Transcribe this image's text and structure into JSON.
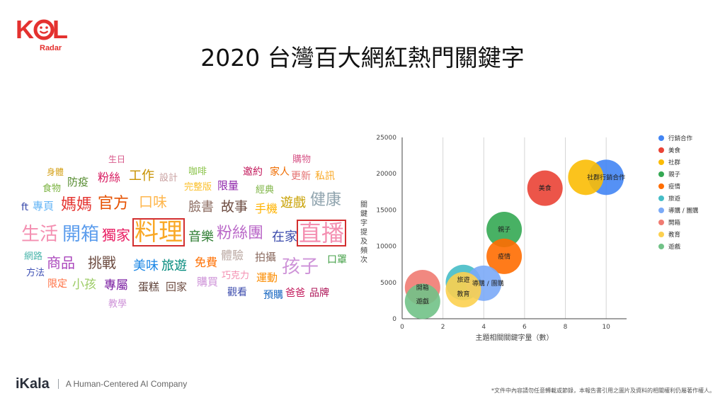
{
  "logo": {
    "main": "KOL",
    "sub": "Radar",
    "main_color": "#e4312f",
    "sub_color": "#e4312f",
    "icon": "smile-face-icon"
  },
  "title": "2020 台灣百大網紅熱門關鍵字",
  "word_cloud": {
    "words": [
      {
        "text": "生日",
        "color": "#d85a8b",
        "size": 12
      },
      {
        "text": "購物",
        "color": "#d85a8b",
        "size": 13
      },
      {
        "text": "身體",
        "color": "#d4a017",
        "size": 12
      },
      {
        "text": "粉絲",
        "color": "#d81b60",
        "size": 16
      },
      {
        "text": "工作",
        "color": "#c79100",
        "size": 18
      },
      {
        "text": "設計",
        "color": "#c9a0a0",
        "size": 13
      },
      {
        "text": "咖啡",
        "color": "#8bc34a",
        "size": 13
      },
      {
        "text": "邀約",
        "color": "#c2185b",
        "size": 14
      },
      {
        "text": "家人",
        "color": "#ef6c00",
        "size": 14
      },
      {
        "text": "食物",
        "color": "#7cb342",
        "size": 13
      },
      {
        "text": "防疫",
        "color": "#558b2f",
        "size": 15
      },
      {
        "text": "完整版",
        "color": "#fbc02d",
        "size": 13
      },
      {
        "text": "限量",
        "color": "#8e24aa",
        "size": 15
      },
      {
        "text": "經典",
        "color": "#7cb342",
        "size": 13
      },
      {
        "text": "更新",
        "color": "#e57373",
        "size": 14
      },
      {
        "text": "私訊",
        "color": "#f9a825",
        "size": 14
      },
      {
        "text": "ft",
        "color": "#3949ab",
        "size": 14
      },
      {
        "text": "專頁",
        "color": "#64b5f6",
        "size": 15
      },
      {
        "text": "媽媽",
        "color": "#e53935",
        "size": 22
      },
      {
        "text": "官方",
        "color": "#e65100",
        "size": 22
      },
      {
        "text": "口味",
        "color": "#ffb74d",
        "size": 20
      },
      {
        "text": "臉書",
        "color": "#8d6e63",
        "size": 18
      },
      {
        "text": "故事",
        "color": "#6d4c41",
        "size": 19
      },
      {
        "text": "手機",
        "color": "#ffb300",
        "size": 16
      },
      {
        "text": "遊戲",
        "color": "#c8a000",
        "size": 18
      },
      {
        "text": "健康",
        "color": "#90a4ae",
        "size": 22
      },
      {
        "text": "生活",
        "color": "#f48fb1",
        "size": 26
      },
      {
        "text": "開箱",
        "color": "#5c9ded",
        "size": 26
      },
      {
        "text": "獨家",
        "color": "#e91e63",
        "size": 20
      },
      {
        "text": "料理",
        "color": "#f9a825",
        "size": 34
      },
      {
        "text": "音樂",
        "color": "#2e7d32",
        "size": 18
      },
      {
        "text": "粉絲團",
        "color": "#ba68c8",
        "size": 22
      },
      {
        "text": "在家",
        "color": "#3949ab",
        "size": 18
      },
      {
        "text": "直播",
        "color": "#f48fb1",
        "size": 32
      },
      {
        "text": "網路",
        "color": "#4db6ac",
        "size": 13
      },
      {
        "text": "商品",
        "color": "#ab47bc",
        "size": 20
      },
      {
        "text": "挑戰",
        "color": "#6d4c41",
        "size": 20
      },
      {
        "text": "美味",
        "color": "#1e88e5",
        "size": 18
      },
      {
        "text": "旅遊",
        "color": "#00897b",
        "size": 18
      },
      {
        "text": "免費",
        "color": "#ff6f00",
        "size": 16
      },
      {
        "text": "體驗",
        "color": "#bcaaa4",
        "size": 16
      },
      {
        "text": "拍攝",
        "color": "#8d6e63",
        "size": 15
      },
      {
        "text": "孩子",
        "color": "#ce93d8",
        "size": 26
      },
      {
        "text": "口罩",
        "color": "#43a047",
        "size": 14
      },
      {
        "text": "方法",
        "color": "#3f51b5",
        "size": 13
      },
      {
        "text": "巧克力",
        "color": "#f48fb1",
        "size": 13
      },
      {
        "text": "運動",
        "color": "#fb8c00",
        "size": 15
      },
      {
        "text": "限定",
        "color": "#ff7043",
        "size": 14
      },
      {
        "text": "小孩",
        "color": "#9ccc65",
        "size": 17
      },
      {
        "text": "專屬",
        "color": "#7b1fa2",
        "size": 17
      },
      {
        "text": "蛋糕",
        "color": "#5d4037",
        "size": 15
      },
      {
        "text": "回家",
        "color": "#6d4c41",
        "size": 15
      },
      {
        "text": "購買",
        "color": "#ce93d8",
        "size": 15
      },
      {
        "text": "觀看",
        "color": "#3949ab",
        "size": 14
      },
      {
        "text": "預購",
        "color": "#1565c0",
        "size": 14
      },
      {
        "text": "爸爸",
        "color": "#c2185b",
        "size": 14
      },
      {
        "text": "品牌",
        "color": "#ad1457",
        "size": 14
      },
      {
        "text": "教學",
        "color": "#ce93d8",
        "size": 13
      }
    ],
    "highlight_color": "#d32f2f"
  },
  "chart_data": {
    "type": "scatter",
    "xlabel": "主題相關關鍵字量（數）",
    "ylabel": "關鍵字提及頻次",
    "xlim": [
      0,
      11
    ],
    "ylim": [
      0,
      25000
    ],
    "xticks": [
      0,
      2,
      4,
      6,
      8,
      10
    ],
    "yticks": [
      0,
      5000,
      10000,
      15000,
      20000,
      25000
    ],
    "grid": "vertical",
    "legend_position": "right",
    "points": [
      {
        "name": "行銷合作",
        "label": "社群行銷合作",
        "x": 10,
        "y": 19500,
        "color": "#4285f4"
      },
      {
        "name": "美食",
        "label": "美食",
        "x": 7,
        "y": 18000,
        "color": "#ea4335"
      },
      {
        "name": "社群",
        "label": "",
        "x": 9,
        "y": 19500,
        "color": "#fbbc04"
      },
      {
        "name": "親子",
        "label": "親子",
        "x": 5,
        "y": 12300,
        "color": "#34a853"
      },
      {
        "name": "疫情",
        "label": "疫情",
        "x": 5,
        "y": 8600,
        "color": "#ff6d01"
      },
      {
        "name": "旅遊",
        "label": "旅遊",
        "x": 3,
        "y": 5000,
        "color": "#46bdc6"
      },
      {
        "name": "導購 / 團購",
        "label": "導購 / 團購",
        "x": 4,
        "y": 4900,
        "color": "#7baaf7"
      },
      {
        "name": "開箱",
        "label": "開箱",
        "x": 1,
        "y": 4300,
        "color": "#f07b72"
      },
      {
        "name": "教育",
        "label": "教育",
        "x": 3,
        "y": 4000,
        "color": "#fcd04f"
      },
      {
        "name": "遊戲",
        "label": "遊戲",
        "x": 1,
        "y": 2400,
        "color": "#71c287"
      }
    ]
  },
  "footer": {
    "brand": "iKala",
    "tagline": "A Human-Centered AI Company",
    "disclaimer": "*文件中內容請勿任意轉載或節錄，本報告書引用之圖片及資料的相關權利仍屬著作權人。"
  }
}
